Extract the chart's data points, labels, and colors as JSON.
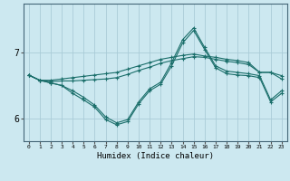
{
  "xlabel": "Humidex (Indice chaleur)",
  "bg_color": "#cce8f0",
  "grid_color": "#aaccd8",
  "line_color": "#1a6e6a",
  "xlim": [
    -0.5,
    23.5
  ],
  "ylim": [
    5.65,
    7.75
  ],
  "yticks": [
    6,
    7
  ],
  "x": [
    0,
    1,
    2,
    3,
    4,
    5,
    6,
    7,
    8,
    9,
    10,
    11,
    12,
    13,
    14,
    15,
    16,
    17,
    18,
    19,
    20,
    21,
    22,
    23
  ],
  "line1": [
    6.66,
    6.58,
    6.58,
    6.6,
    6.62,
    6.64,
    6.66,
    6.68,
    6.7,
    6.75,
    6.8,
    6.85,
    6.9,
    6.93,
    6.96,
    6.98,
    6.95,
    6.93,
    6.9,
    6.88,
    6.85,
    6.7,
    6.7,
    6.65
  ],
  "line2": [
    6.66,
    6.58,
    6.56,
    6.57,
    6.57,
    6.58,
    6.59,
    6.6,
    6.62,
    6.67,
    6.73,
    6.78,
    6.84,
    6.88,
    6.91,
    6.94,
    6.93,
    6.9,
    6.87,
    6.85,
    6.82,
    6.7,
    6.7,
    6.6
  ],
  "line3": [
    6.66,
    6.58,
    6.54,
    6.5,
    6.42,
    6.32,
    6.2,
    6.02,
    5.93,
    5.98,
    6.25,
    6.45,
    6.55,
    6.85,
    7.2,
    7.38,
    7.08,
    6.8,
    6.72,
    6.7,
    6.68,
    6.65,
    6.28,
    6.42
  ],
  "line4": [
    6.66,
    6.58,
    6.54,
    6.5,
    6.38,
    6.28,
    6.17,
    5.98,
    5.9,
    5.95,
    6.22,
    6.42,
    6.52,
    6.8,
    7.15,
    7.34,
    7.05,
    6.77,
    6.68,
    6.66,
    6.65,
    6.62,
    6.25,
    6.38
  ]
}
